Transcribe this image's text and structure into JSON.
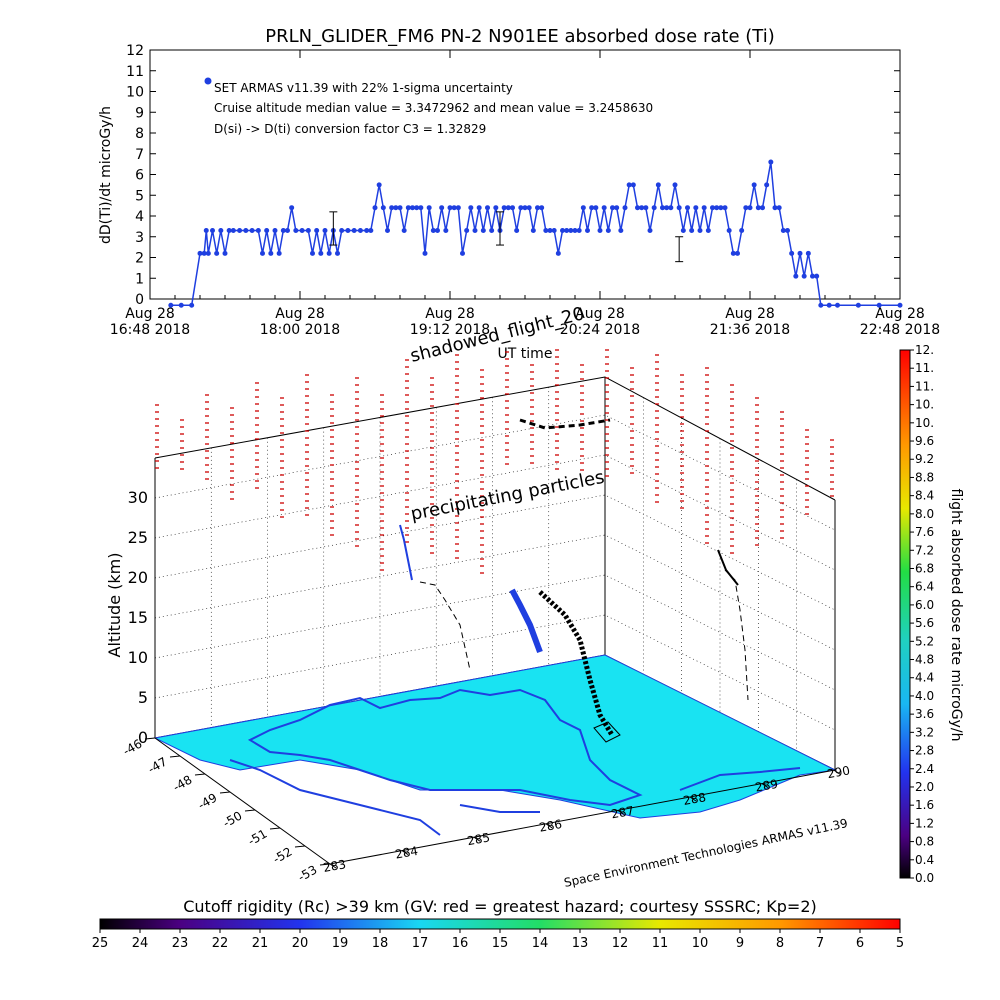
{
  "colors": {
    "series": "#1f3fe0",
    "map_fill": "#19e3f2",
    "map_coast": "#1f3fe0",
    "grid": "#000000",
    "track": "#000000"
  },
  "chart_data": [
    {
      "type": "line",
      "title": "PRLN_GLIDER_FM6 PN-2 N901EE absorbed dose rate (Ti)",
      "ylabel": "dD(Ti)/dt microGy/h",
      "xlabel": "UT time",
      "ylim": [
        0,
        12
      ],
      "yticks": [
        "0",
        "1",
        "2",
        "3",
        "4",
        "5",
        "6",
        "7",
        "8",
        "9",
        "10",
        "11",
        "12"
      ],
      "xticks": [
        {
          "top": "Aug 28",
          "bottom": "16:48 2018"
        },
        {
          "top": "Aug 28",
          "bottom": "18:00 2018"
        },
        {
          "top": "Aug 28",
          "bottom": "19:12 2018"
        },
        {
          "top": "Aug 28",
          "bottom": "20:24 2018"
        },
        {
          "top": "Aug 28",
          "bottom": "21:36 2018"
        },
        {
          "top": "Aug 28",
          "bottom": "22:48 2018"
        }
      ],
      "x_unit": "minutes after 16:48 UT",
      "xlim": [
        0,
        360
      ],
      "legend": {
        "placement": "top-left",
        "entries": [
          "SET ARMAS v11.39 with 22% 1-sigma uncertainty",
          "Cruise altitude median value = 3.3472962 and mean value = 3.2458630",
          "D(si) -> D(ti) conversion factor C3 = 1.32829"
        ]
      },
      "series": [
        {
          "name": "SET ARMAS v11.39",
          "points": [
            [
              10,
              -0.3
            ],
            [
              15,
              -0.3
            ],
            [
              20,
              -0.3
            ],
            [
              24,
              2.2
            ],
            [
              26,
              2.2
            ],
            [
              27,
              3.3
            ],
            [
              28,
              2.2
            ],
            [
              30,
              3.3
            ],
            [
              32,
              2.2
            ],
            [
              34,
              3.3
            ],
            [
              36,
              2.2
            ],
            [
              38,
              3.3
            ],
            [
              40,
              3.3
            ],
            [
              43,
              3.3
            ],
            [
              46,
              3.3
            ],
            [
              49,
              3.3
            ],
            [
              52,
              3.3
            ],
            [
              54,
              2.2
            ],
            [
              56,
              3.3
            ],
            [
              58,
              2.2
            ],
            [
              60,
              3.3
            ],
            [
              62,
              2.2
            ],
            [
              64,
              3.3
            ],
            [
              66,
              3.3
            ],
            [
              68,
              4.4
            ],
            [
              70,
              3.3
            ],
            [
              73,
              3.3
            ],
            [
              76,
              3.3
            ],
            [
              78,
              2.2
            ],
            [
              80,
              3.3
            ],
            [
              82,
              2.2
            ],
            [
              84,
              3.3
            ],
            [
              86,
              2.2
            ],
            [
              88,
              3.3
            ],
            [
              90,
              2.2
            ],
            [
              92,
              3.3
            ],
            [
              95,
              3.3
            ],
            [
              98,
              3.3
            ],
            [
              101,
              3.3
            ],
            [
              104,
              3.3
            ],
            [
              106,
              3.3
            ],
            [
              108,
              4.4
            ],
            [
              110,
              5.5
            ],
            [
              112,
              4.4
            ],
            [
              114,
              3.3
            ],
            [
              116,
              4.4
            ],
            [
              118,
              4.4
            ],
            [
              120,
              4.4
            ],
            [
              122,
              3.3
            ],
            [
              124,
              4.4
            ],
            [
              126,
              4.4
            ],
            [
              128,
              4.4
            ],
            [
              130,
              4.4
            ],
            [
              132,
              2.2
            ],
            [
              134,
              4.4
            ],
            [
              136,
              3.3
            ],
            [
              138,
              3.3
            ],
            [
              140,
              4.4
            ],
            [
              142,
              3.3
            ],
            [
              144,
              4.4
            ],
            [
              146,
              4.4
            ],
            [
              148,
              4.4
            ],
            [
              150,
              2.2
            ],
            [
              152,
              3.3
            ],
            [
              154,
              4.4
            ],
            [
              156,
              3.3
            ],
            [
              158,
              4.4
            ],
            [
              160,
              3.3
            ],
            [
              162,
              4.4
            ],
            [
              164,
              3.3
            ],
            [
              166,
              4.4
            ],
            [
              168,
              3.3
            ],
            [
              170,
              4.4
            ],
            [
              172,
              4.4
            ],
            [
              174,
              4.4
            ],
            [
              176,
              3.3
            ],
            [
              178,
              4.4
            ],
            [
              180,
              4.4
            ],
            [
              182,
              4.4
            ],
            [
              184,
              3.3
            ],
            [
              186,
              4.4
            ],
            [
              188,
              4.4
            ],
            [
              190,
              3.3
            ],
            [
              192,
              3.3
            ],
            [
              194,
              3.3
            ],
            [
              196,
              2.2
            ],
            [
              198,
              3.3
            ],
            [
              200,
              3.3
            ],
            [
              202,
              3.3
            ],
            [
              204,
              3.3
            ],
            [
              206,
              3.3
            ],
            [
              208,
              4.4
            ],
            [
              210,
              3.3
            ],
            [
              212,
              4.4
            ],
            [
              214,
              4.4
            ],
            [
              216,
              3.3
            ],
            [
              218,
              4.4
            ],
            [
              220,
              3.3
            ],
            [
              222,
              4.4
            ],
            [
              224,
              4.4
            ],
            [
              226,
              3.3
            ],
            [
              228,
              4.4
            ],
            [
              230,
              5.5
            ],
            [
              232,
              5.5
            ],
            [
              234,
              4.4
            ],
            [
              236,
              4.4
            ],
            [
              238,
              4.4
            ],
            [
              240,
              3.3
            ],
            [
              242,
              4.4
            ],
            [
              244,
              5.5
            ],
            [
              246,
              4.4
            ],
            [
              248,
              4.4
            ],
            [
              250,
              4.4
            ],
            [
              252,
              5.5
            ],
            [
              254,
              4.4
            ],
            [
              256,
              3.3
            ],
            [
              258,
              4.4
            ],
            [
              260,
              3.3
            ],
            [
              262,
              4.4
            ],
            [
              264,
              3.3
            ],
            [
              266,
              4.4
            ],
            [
              268,
              3.3
            ],
            [
              270,
              4.4
            ],
            [
              272,
              4.4
            ],
            [
              274,
              4.4
            ],
            [
              276,
              4.4
            ],
            [
              278,
              3.3
            ],
            [
              280,
              2.2
            ],
            [
              282,
              2.2
            ],
            [
              284,
              3.3
            ],
            [
              286,
              4.4
            ],
            [
              288,
              4.4
            ],
            [
              290,
              5.5
            ],
            [
              292,
              4.4
            ],
            [
              294,
              4.4
            ],
            [
              296,
              5.5
            ],
            [
              298,
              6.6
            ],
            [
              300,
              4.4
            ],
            [
              302,
              4.4
            ],
            [
              304,
              3.3
            ],
            [
              306,
              3.3
            ],
            [
              308,
              2.2
            ],
            [
              310,
              1.1
            ],
            [
              312,
              2.2
            ],
            [
              314,
              1.1
            ],
            [
              316,
              2.2
            ],
            [
              318,
              1.1
            ],
            [
              320,
              1.1
            ],
            [
              322,
              -0.3
            ],
            [
              326,
              -0.3
            ],
            [
              330,
              -0.3
            ],
            [
              340,
              -0.3
            ],
            [
              350,
              -0.3
            ],
            [
              360,
              -0.3
            ]
          ]
        }
      ],
      "error_bars": [
        {
          "x": 88,
          "y": 3.4,
          "err": 0.8
        },
        {
          "x": 168,
          "y": 3.4,
          "err": 0.8
        },
        {
          "x": 254,
          "y": 2.4,
          "err": 0.6
        }
      ]
    },
    {
      "type": "scatter",
      "subtype": "3d-map",
      "zlabel": "Altitude (km)",
      "zticks": [
        "0",
        "5",
        "10",
        "15",
        "20",
        "25",
        "30"
      ],
      "lat_ticks": [
        "-46",
        "-47",
        "-48",
        "-49",
        "-50",
        "-51",
        "-52",
        "-53"
      ],
      "lon_ticks": [
        "283",
        "284",
        "285",
        "286",
        "287",
        "288",
        "289",
        "290"
      ],
      "annotations": {
        "shadowed_flight": "shadowed_flight_20",
        "precipitating": "precipitating particles",
        "credit": "Space Environment Technologies ARMAS v11.39"
      }
    },
    {
      "type": "colorbar",
      "label": "flight absorbed dose rate microGy/h",
      "range": [
        0,
        12
      ],
      "ticks": [
        "0.0",
        "0.4",
        "0.8",
        "1.2",
        "1.6",
        "2.0",
        "2.4",
        "2.8",
        "3.2",
        "3.6",
        "4.0",
        "4.4",
        "4.8",
        "5.2",
        "5.6",
        "6.0",
        "6.4",
        "6.8",
        "7.2",
        "7.6",
        "8.0",
        "8.4",
        "8.8",
        "9.2",
        "9.6",
        "10.",
        "10.",
        "11.",
        "11.",
        "12."
      ]
    },
    {
      "type": "colorbar",
      "label": "Cutoff rigidity (Rc) >39 km (GV: red = greatest hazard; courtesy SSSRC; Kp=2)",
      "range": [
        25,
        5
      ],
      "ticks": [
        "25",
        "24",
        "23",
        "22",
        "21",
        "20",
        "19",
        "18",
        "17",
        "16",
        "15",
        "14",
        "13",
        "12",
        "11",
        "10",
        "9",
        "8",
        "7",
        "6",
        "5"
      ]
    }
  ]
}
